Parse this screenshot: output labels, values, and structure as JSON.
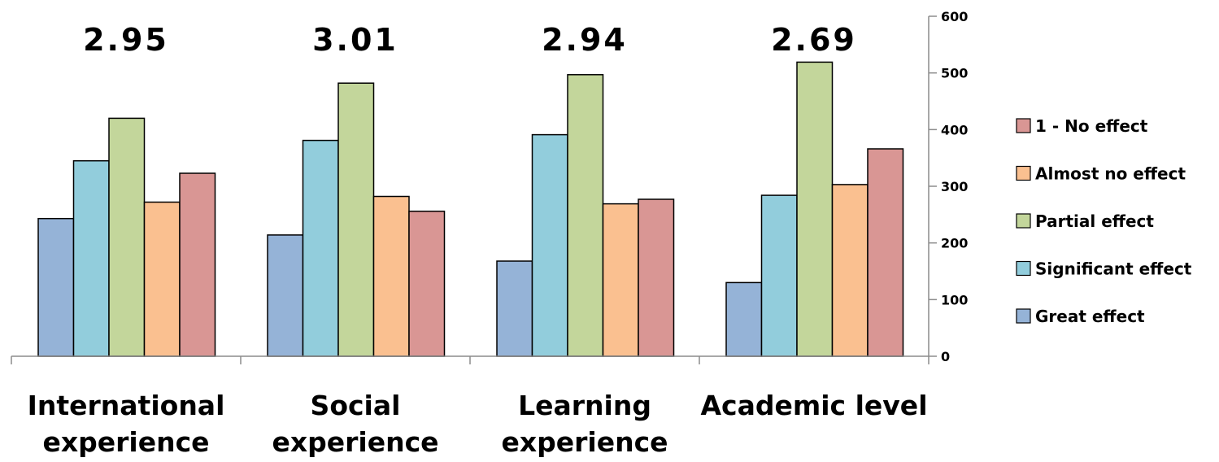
{
  "chart_data": {
    "type": "bar",
    "categories": [
      "International experience",
      "Social experience",
      "Learning experience",
      "Academic level"
    ],
    "category_label_lines": [
      [
        "International",
        "experience"
      ],
      [
        "Social",
        "experience"
      ],
      [
        "Learning",
        "experience"
      ],
      [
        "Academic level"
      ]
    ],
    "top_annotations": [
      "2.95",
      "3.01",
      "2.94",
      "2.69"
    ],
    "series": [
      {
        "name": "Great effect",
        "color": "#95b3d7",
        "values": [
          243,
          214,
          168,
          130
        ]
      },
      {
        "name": "Significant effect",
        "color": "#92cddc",
        "values": [
          345,
          381,
          391,
          284
        ]
      },
      {
        "name": "Partial effect",
        "color": "#c3d69b",
        "values": [
          420,
          482,
          497,
          519
        ]
      },
      {
        "name": "Almost no effect",
        "color": "#fac090",
        "values": [
          272,
          282,
          269,
          303
        ]
      },
      {
        "name": "1 - No effect",
        "color": "#d99694",
        "values": [
          323,
          256,
          277,
          366
        ]
      }
    ],
    "legend_order": [
      "1 - No effect",
      "Almost no effect",
      "Partial effect",
      "Significant effect",
      "Great effect"
    ],
    "yaxis_ticks": [
      "0",
      "100",
      "200",
      "300",
      "400",
      "500",
      "600"
    ],
    "ylim": [
      0,
      600
    ],
    "yaxis_position": "right",
    "legend_position": "right",
    "grid": false,
    "title": "",
    "xlabel": "",
    "ylabel": ""
  }
}
